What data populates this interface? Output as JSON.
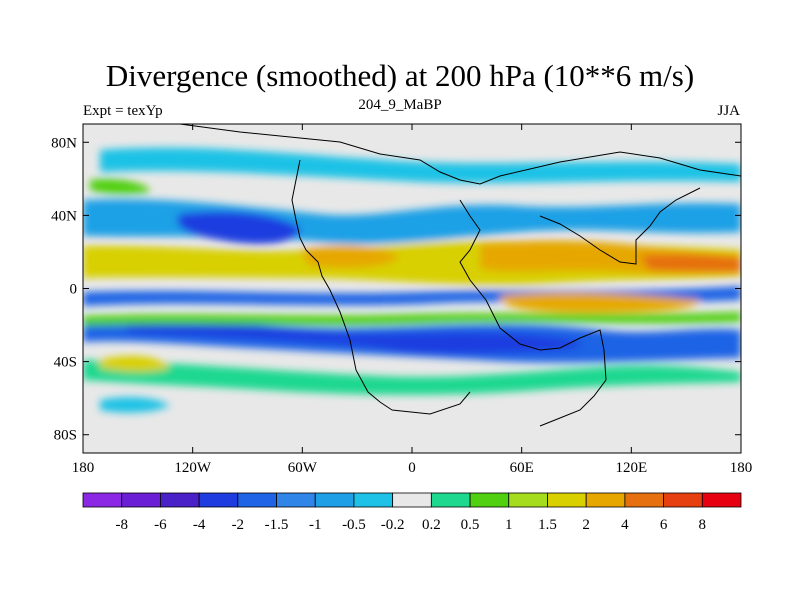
{
  "title": "Divergence (smoothed) at 200 hPa (10**6 m/s)",
  "subtitle_left": "Expt = texYp",
  "subtitle_center": "204_9_MaBP",
  "subtitle_right": "JJA",
  "map": {
    "projection": "cylindrical-equidistant",
    "lon_range": [
      -180,
      180
    ],
    "lat_range": [
      -90,
      90
    ],
    "lon_ticks": [
      {
        "value": -180,
        "label": "180"
      },
      {
        "value": -120,
        "label": "120W"
      },
      {
        "value": -60,
        "label": "60W"
      },
      {
        "value": 0,
        "label": "0"
      },
      {
        "value": 60,
        "label": "60E"
      },
      {
        "value": 120,
        "label": "120E"
      },
      {
        "value": 180,
        "label": "180"
      }
    ],
    "lat_ticks": [
      {
        "value": 80,
        "label": "80N"
      },
      {
        "value": 40,
        "label": "40N"
      },
      {
        "value": 0,
        "label": "0"
      },
      {
        "value": -40,
        "label": "40S"
      },
      {
        "value": -80,
        "label": "80S"
      }
    ],
    "background_color": "#e8e8e8",
    "coastline_color": "#000000"
  },
  "colorbar": {
    "colors": [
      "#8a28e6",
      "#6a1fd6",
      "#4a20c8",
      "#1e3ce0",
      "#1f64e6",
      "#2f86e8",
      "#1fa0e6",
      "#1ec2e6",
      "#e8e8e8",
      "#1ed890",
      "#50d010",
      "#a6dc1e",
      "#d8d000",
      "#e6a800",
      "#e67010",
      "#e64010",
      "#e60010"
    ],
    "labels": [
      "-8",
      "-6",
      "-4",
      "-2",
      "-1.5",
      "-1",
      "-0.5",
      "-0.2",
      "0.2",
      "0.5",
      "1",
      "1.5",
      "2",
      "4",
      "6",
      "8"
    ]
  }
}
